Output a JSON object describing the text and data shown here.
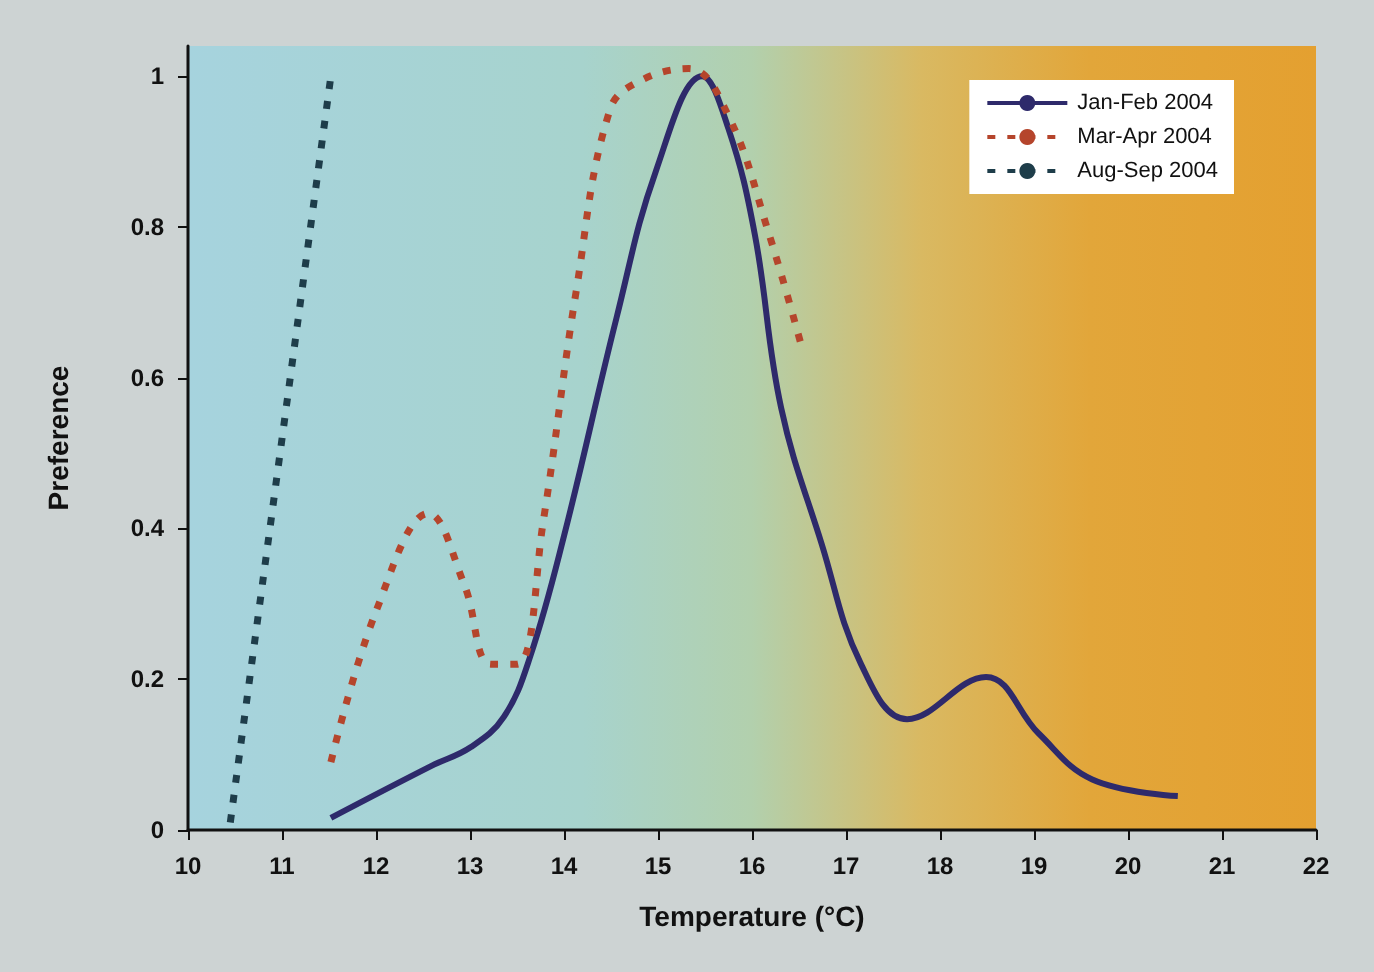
{
  "chart_data": {
    "type": "line",
    "xlabel": "Temperature (°C)",
    "ylabel": "Preference",
    "xlim": [
      10,
      22
    ],
    "xticks": [
      10,
      11,
      12,
      13,
      14,
      15,
      16,
      17,
      18,
      19,
      20,
      21,
      22
    ],
    "ylim": [
      0,
      1.04
    ],
    "yticks": [
      0,
      0.2,
      0.4,
      0.6,
      0.8,
      1
    ],
    "legend": "top right",
    "marker": "none",
    "series": [
      {
        "name": "Jan-Feb 2004",
        "color": "#2e2a6b",
        "line_style": "solid",
        "x": [
          11.52,
          12.59,
          13.01,
          13.36,
          13.64,
          14.0,
          14.56,
          14.98,
          15.47,
          15.75,
          16.03,
          16.31,
          16.74,
          17.16,
          17.65,
          18.49,
          19.05,
          19.62,
          20.53
        ],
        "values": [
          0.016,
          0.085,
          0.11,
          0.15,
          0.23,
          0.39,
          0.68,
          0.875,
          1.0,
          0.93,
          0.79,
          0.56,
          0.38,
          0.22,
          0.147,
          0.203,
          0.128,
          0.067,
          0.045
        ]
      },
      {
        "name": "Mar-Apr 2004",
        "color": "#b5452c",
        "line_style": "dotted",
        "x": [
          11.52,
          12.0,
          12.56,
          12.94,
          13.22,
          13.5,
          13.78,
          14.13,
          14.49,
          14.83,
          15.33,
          15.75,
          16.17,
          16.52
        ],
        "values": [
          0.09,
          0.29,
          0.42,
          0.325,
          0.22,
          0.22,
          0.41,
          0.715,
          0.956,
          0.995,
          1.01,
          0.947,
          0.795,
          0.645
        ]
      },
      {
        "name": "Aug-Sep 2004",
        "color": "#1e3d4a",
        "line_style": "dotted",
        "x": [
          10.45,
          11.52
        ],
        "values": [
          0.01,
          1.0
        ]
      }
    ]
  }
}
